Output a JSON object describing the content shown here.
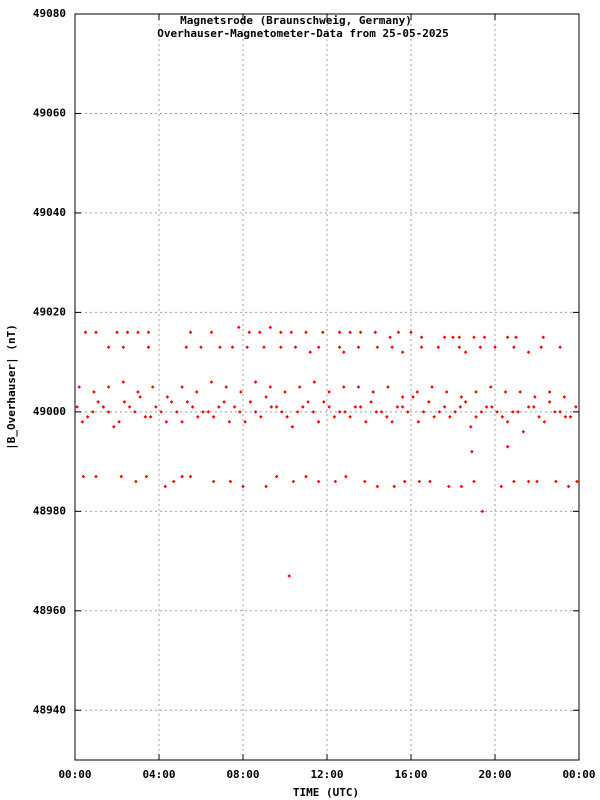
{
  "chart_data": {
    "type": "scatter",
    "title": "Magnetsrode (Braunschweig, Germany)",
    "subtitle": "Overhauser-Magnetometer-Data from 25-05-2025",
    "x_label": "TIME (UTC)",
    "y_label": "|B_Overhauser| (nT)",
    "color": "#ff0000",
    "grid": true,
    "xlim": [
      0,
      24
    ],
    "xticks": [
      {
        "value": 0,
        "label": "00:00"
      },
      {
        "value": 4,
        "label": "04:00"
      },
      {
        "value": 8,
        "label": "08:00"
      },
      {
        "value": 12,
        "label": "12:00"
      },
      {
        "value": 16,
        "label": "16:00"
      },
      {
        "value": 20,
        "label": "20:00"
      },
      {
        "value": 24,
        "label": "00:00"
      }
    ],
    "ylim": [
      48930,
      49080
    ],
    "yticks": [
      48940,
      48960,
      48980,
      49000,
      49020,
      49040,
      49060,
      49080
    ],
    "x": [
      0.1,
      0.6,
      1.1,
      1.6,
      2.1,
      2.6,
      3.1,
      3.6,
      4.1,
      4.6,
      5.1,
      5.6,
      6.1,
      6.6,
      7.1,
      7.6,
      8.1,
      8.6,
      9.1,
      9.6,
      10.1,
      10.6,
      11.1,
      11.6,
      12.1,
      12.6,
      13.1,
      13.6,
      14.1,
      14.6,
      15.1,
      15.6,
      16.1,
      16.6,
      17.1,
      17.6,
      18.1,
      18.6,
      19.1,
      19.6,
      20.1,
      20.6,
      21.1,
      21.6,
      22.1,
      22.6,
      23.1,
      23.6,
      0.35,
      0.85,
      1.35,
      1.85,
      2.35,
      2.85,
      3.35,
      3.85,
      4.35,
      4.85,
      5.35,
      5.85,
      6.35,
      6.85,
      7.35,
      7.85,
      8.35,
      8.85,
      9.35,
      9.85,
      10.35,
      10.85,
      11.35,
      11.85,
      12.35,
      12.85,
      13.35,
      13.85,
      14.35,
      14.85,
      15.35,
      15.85,
      16.35,
      16.85,
      17.35,
      17.85,
      18.35,
      18.85,
      19.35,
      19.85,
      20.35,
      20.85,
      21.35,
      21.85,
      22.35,
      22.85,
      23.35,
      23.85,
      0.2,
      0.9,
      1.6,
      2.3,
      3.0,
      3.7,
      4.4,
      5.1,
      5.8,
      6.5,
      7.2,
      7.9,
      8.6,
      9.3,
      10.0,
      10.7,
      11.4,
      12.1,
      12.8,
      13.5,
      14.2,
      14.9,
      15.6,
      16.3,
      17.0,
      17.7,
      18.4,
      19.1,
      19.8,
      20.5,
      21.2,
      21.9,
      22.6,
      23.3,
      0.5,
      1.0,
      2.0,
      2.5,
      3.0,
      3.5,
      5.5,
      6.5,
      7.8,
      8.3,
      8.8,
      9.3,
      9.8,
      10.3,
      11.0,
      11.8,
      12.6,
      13.1,
      13.6,
      14.3,
      15.0,
      15.4,
      16.0,
      16.5,
      17.6,
      18.0,
      18.3,
      19.0,
      19.5,
      20.6,
      21.0,
      22.3,
      1.6,
      2.3,
      3.5,
      5.3,
      6.0,
      6.9,
      7.5,
      8.2,
      9.0,
      9.8,
      10.5,
      11.2,
      11.6,
      12.6,
      12.8,
      13.5,
      14.4,
      15.1,
      15.6,
      16.5,
      17.3,
      18.3,
      18.6,
      19.3,
      20.0,
      20.9,
      21.6,
      22.2,
      23.1,
      0.4,
      1.0,
      2.2,
      2.9,
      3.4,
      4.3,
      4.7,
      5.1,
      5.5,
      6.6,
      7.4,
      8.0,
      9.1,
      9.6,
      10.4,
      11.0,
      11.6,
      12.4,
      12.9,
      13.8,
      14.4,
      15.2,
      15.7,
      16.4,
      16.9,
      17.8,
      18.4,
      19.0,
      20.3,
      20.9,
      21.6,
      22.0,
      22.9,
      23.5,
      23.9,
      10.2,
      19.4,
      18.9,
      20.6
    ],
    "values": [
      49001,
      48999,
      49002,
      49000,
      48998,
      49001,
      49003,
      48999,
      49000,
      49002,
      48998,
      49001,
      49000,
      48999,
      49002,
      49001,
      48998,
      49000,
      49003,
      49001,
      48999,
      49000,
      49002,
      48998,
      49001,
      49000,
      48999,
      49001,
      49002,
      49000,
      48998,
      49001,
      49003,
      49000,
      48999,
      49001,
      49000,
      49002,
      48999,
      49001,
      49000,
      48998,
      49000,
      49001,
      48999,
      49002,
      49000,
      48999,
      48998,
      49000,
      49001,
      48997,
      49002,
      49000,
      48999,
      49001,
      48998,
      49000,
      49002,
      48999,
      49000,
      49001,
      48998,
      49000,
      49002,
      48999,
      49001,
      49000,
      48997,
      49001,
      49000,
      49002,
      48999,
      49000,
      49001,
      48998,
      49000,
      48999,
      49001,
      49000,
      48998,
      49002,
      49000,
      48999,
      49001,
      48997,
      49000,
      49001,
      48999,
      49000,
      48996,
      49001,
      48998,
      49000,
      48999,
      49001,
      49005,
      49004,
      49005,
      49006,
      49004,
      49005,
      49003,
      49005,
      49004,
      49006,
      49005,
      49004,
      49006,
      49005,
      49004,
      49005,
      49006,
      49004,
      49005,
      49005,
      49004,
      49005,
      49003,
      49004,
      49005,
      49004,
      49003,
      49004,
      49005,
      49004,
      49004,
      49003,
      49004,
      49003,
      49016,
      49016,
      49016,
      49016,
      49016,
      49016,
      49016,
      49016,
      49017,
      49016,
      49016,
      49017,
      49016,
      49016,
      49016,
      49016,
      49016,
      49016,
      49016,
      49016,
      49015,
      49016,
      49016,
      49015,
      49015,
      49015,
      49015,
      49015,
      49015,
      49015,
      49015,
      49015,
      49013,
      49013,
      49013,
      49013,
      49013,
      49013,
      49013,
      49013,
      49013,
      49013,
      49013,
      49012,
      49013,
      49013,
      49012,
      49013,
      49013,
      49013,
      49012,
      49013,
      49013,
      49013,
      49012,
      49013,
      49013,
      49013,
      49012,
      49013,
      49013,
      48987,
      48987,
      48987,
      48986,
      48987,
      48985,
      48986,
      48987,
      48987,
      48986,
      48986,
      48985,
      48985,
      48987,
      48986,
      48987,
      48986,
      48986,
      48987,
      48986,
      48985,
      48985,
      48986,
      48986,
      48986,
      48985,
      48985,
      48986,
      48985,
      48986,
      48986,
      48986,
      48986,
      48985,
      48986,
      48967,
      48980,
      48992,
      48993
    ]
  }
}
